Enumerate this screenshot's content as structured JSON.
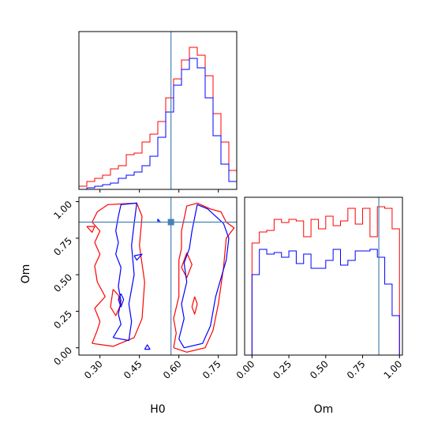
{
  "chart_data": {
    "type": "corner",
    "params": [
      "H0",
      "Om"
    ],
    "truth": {
      "H0": 0.57,
      "Om": 0.86
    },
    "colors": {
      "series_a": "#ff0000",
      "series_b": "#0000ff",
      "truth": "#4682b4"
    },
    "panels": [
      {
        "id": "hist-H0",
        "type": "histogram",
        "xlabel": "",
        "xlim": [
          0.22,
          0.82
        ],
        "ylim": [
          0,
          1.0
        ],
        "bin_edges": [
          0.22,
          0.25,
          0.28,
          0.31,
          0.34,
          0.37,
          0.4,
          0.43,
          0.46,
          0.49,
          0.52,
          0.55,
          0.58,
          0.61,
          0.64,
          0.67,
          0.7,
          0.73,
          0.76,
          0.79,
          0.82
        ],
        "series": [
          {
            "values": [
              0.02,
              0.05,
              0.07,
              0.09,
              0.13,
              0.15,
              0.22,
              0.23,
              0.3,
              0.35,
              0.43,
              0.58,
              0.7,
              0.82,
              0.9,
              0.85,
              0.72,
              0.48,
              0.3,
              0.12
            ]
          },
          {
            "values": [
              0.0,
              0.01,
              0.02,
              0.03,
              0.04,
              0.07,
              0.09,
              0.11,
              0.15,
              0.21,
              0.33,
              0.49,
              0.66,
              0.76,
              0.83,
              0.77,
              0.58,
              0.34,
              0.16,
              0.05
            ]
          }
        ]
      },
      {
        "id": "hist-Om",
        "type": "histogram",
        "xlabel": "Om",
        "xlim": [
          -0.05,
          1.02
        ],
        "xticks": [
          "0.00",
          "0.25",
          "0.50",
          "0.75",
          "1.00"
        ],
        "ylim": [
          0,
          1.0
        ],
        "bin_edges": [
          0.0,
          0.05,
          0.1,
          0.15,
          0.2,
          0.25,
          0.3,
          0.35,
          0.4,
          0.45,
          0.5,
          0.55,
          0.6,
          0.65,
          0.7,
          0.75,
          0.8,
          0.85,
          0.9,
          0.95,
          1.0
        ],
        "series": [
          {
            "values": [
              0.71,
              0.78,
              0.79,
              0.86,
              0.84,
              0.86,
              0.85,
              0.75,
              0.86,
              0.8,
              0.88,
              0.82,
              0.85,
              0.93,
              0.83,
              0.93,
              0.75,
              0.94,
              0.93,
              0.8
            ]
          },
          {
            "values": [
              0.51,
              0.67,
              0.64,
              0.65,
              0.62,
              0.66,
              0.58,
              0.64,
              0.55,
              0.55,
              0.6,
              0.67,
              0.57,
              0.6,
              0.66,
              0.66,
              0.67,
              0.62,
              0.45,
              0.25
            ]
          }
        ]
      },
      {
        "id": "contour-H0-Om",
        "type": "contour",
        "xlabel": "H0",
        "ylabel": "Om",
        "xlim": [
          0.22,
          0.82
        ],
        "ylim": [
          -0.05,
          1.03
        ],
        "xticks": [
          "0.30",
          "0.45",
          "0.60",
          "0.75"
        ],
        "yticks": [
          "0.00",
          "0.25",
          "0.50",
          "0.75",
          "1.00"
        ],
        "series": [
          {
            "contours": [
              [
                [
                  0.27,
                  0.03
                ],
                [
                  0.29,
                  0.12
                ],
                [
                  0.3,
                  0.18
                ],
                [
                  0.28,
                  0.27
                ],
                [
                  0.32,
                  0.35
                ],
                [
                  0.29,
                  0.45
                ],
                [
                  0.28,
                  0.56
                ],
                [
                  0.3,
                  0.64
                ],
                [
                  0.28,
                  0.72
                ],
                [
                  0.3,
                  0.8
                ],
                [
                  0.27,
                  0.86
                ],
                [
                  0.29,
                  0.93
                ],
                [
                  0.33,
                  0.98
                ],
                [
                  0.44,
                  0.99
                ],
                [
                  0.46,
                  0.9
                ],
                [
                  0.45,
                  0.7
                ],
                [
                  0.47,
                  0.45
                ],
                [
                  0.46,
                  0.2
                ],
                [
                  0.43,
                  0.07
                ],
                [
                  0.35,
                  0.01
                ],
                [
                  0.27,
                  0.03
                ]
              ],
              [
                [
                  0.35,
                  0.4
                ],
                [
                  0.37,
                  0.36
                ],
                [
                  0.38,
                  0.3
                ],
                [
                  0.36,
                  0.22
                ],
                [
                  0.34,
                  0.28
                ],
                [
                  0.35,
                  0.4
                ]
              ],
              [
                [
                  0.25,
                  0.83
                ],
                [
                  0.28,
                  0.83
                ],
                [
                  0.27,
                  0.79
                ],
                [
                  0.25,
                  0.83
                ]
              ],
              [
                [
                  0.63,
                  0.65
                ],
                [
                  0.65,
                  0.57
                ],
                [
                  0.63,
                  0.48
                ],
                [
                  0.61,
                  0.55
                ],
                [
                  0.63,
                  0.65
                ]
              ],
              [
                [
                  0.58,
                  0.0
                ],
                [
                  0.59,
                  0.1
                ],
                [
                  0.58,
                  0.2
                ],
                [
                  0.6,
                  0.35
                ],
                [
                  0.6,
                  0.5
                ],
                [
                  0.6,
                  0.6
                ],
                [
                  0.61,
                  0.68
                ],
                [
                  0.61,
                  0.8
                ],
                [
                  0.63,
                  0.97
                ],
                [
                  0.67,
                  0.99
                ],
                [
                  0.72,
                  0.95
                ],
                [
                  0.76,
                  0.93
                ],
                [
                  0.78,
                  0.86
                ],
                [
                  0.81,
                  0.82
                ],
                [
                  0.78,
                  0.75
                ],
                [
                  0.77,
                  0.55
                ],
                [
                  0.75,
                  0.3
                ],
                [
                  0.73,
                  0.12
                ],
                [
                  0.7,
                  0.0
                ],
                [
                  0.63,
                  -0.03
                ],
                [
                  0.58,
                  0.0
                ]
              ],
              [
                [
                  0.66,
                  0.35
                ],
                [
                  0.67,
                  0.3
                ],
                [
                  0.66,
                  0.23
                ],
                [
                  0.65,
                  0.28
                ],
                [
                  0.66,
                  0.35
                ]
              ]
            ]
          },
          {
            "contours": [
              [
                [
                  0.35,
                  0.07
                ],
                [
                  0.38,
                  0.16
                ],
                [
                  0.37,
                  0.23
                ],
                [
                  0.38,
                  0.32
                ],
                [
                  0.37,
                  0.42
                ],
                [
                  0.38,
                  0.55
                ],
                [
                  0.36,
                  0.64
                ],
                [
                  0.37,
                  0.72
                ],
                [
                  0.36,
                  0.8
                ],
                [
                  0.37,
                  0.9
                ],
                [
                  0.38,
                  0.98
                ],
                [
                  0.44,
                  0.99
                ],
                [
                  0.43,
                  0.85
                ],
                [
                  0.42,
                  0.7
                ],
                [
                  0.43,
                  0.5
                ],
                [
                  0.41,
                  0.3
                ],
                [
                  0.42,
                  0.18
                ],
                [
                  0.41,
                  0.05
                ],
                [
                  0.35,
                  0.07
                ]
              ],
              [
                [
                  0.38,
                  0.37
                ],
                [
                  0.39,
                  0.33
                ],
                [
                  0.38,
                  0.28
                ],
                [
                  0.37,
                  0.33
                ],
                [
                  0.38,
                  0.37
                ]
              ],
              [
                [
                  0.43,
                  0.63
                ],
                [
                  0.46,
                  0.64
                ],
                [
                  0.44,
                  0.6
                ],
                [
                  0.43,
                  0.63
                ]
              ],
              [
                [
                  0.6,
                  0.06
                ],
                [
                  0.62,
                  0.2
                ],
                [
                  0.61,
                  0.3
                ],
                [
                  0.63,
                  0.45
                ],
                [
                  0.62,
                  0.58
                ],
                [
                  0.64,
                  0.68
                ],
                [
                  0.65,
                  0.8
                ],
                [
                  0.67,
                  0.98
                ],
                [
                  0.71,
                  0.95
                ],
                [
                  0.74,
                  0.9
                ],
                [
                  0.77,
                  0.85
                ],
                [
                  0.79,
                  0.75
                ],
                [
                  0.78,
                  0.6
                ],
                [
                  0.74,
                  0.35
                ],
                [
                  0.72,
                  0.15
                ],
                [
                  0.69,
                  0.03
                ],
                [
                  0.62,
                  0.0
                ],
                [
                  0.6,
                  0.06
                ]
              ],
              [
                [
                  0.47,
                  -0.01
                ],
                [
                  0.49,
                  -0.01
                ],
                [
                  0.48,
                  0.02
                ],
                [
                  0.47,
                  -0.01
                ]
              ],
              [
                [
                  0.52,
                  0.86
                ],
                [
                  0.53,
                  0.86
                ],
                [
                  0.52,
                  0.88
                ],
                [
                  0.52,
                  0.86
                ]
              ]
            ]
          }
        ]
      }
    ]
  }
}
